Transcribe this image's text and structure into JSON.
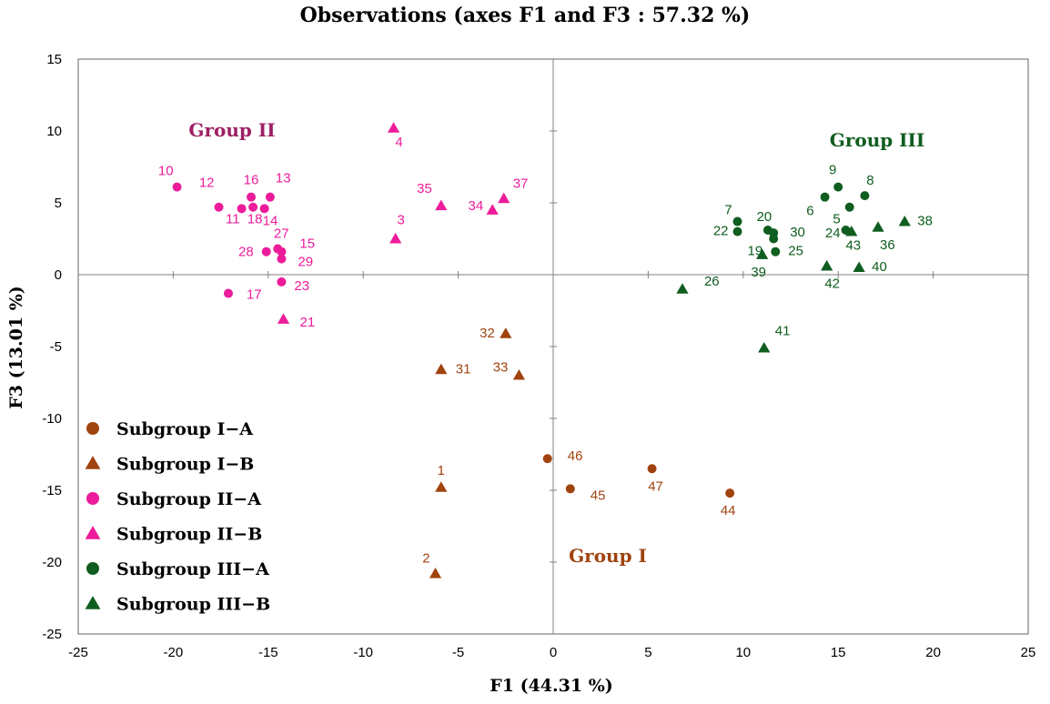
{
  "chart_data": {
    "type": "scatter",
    "title": "Observations (axes F1 and F3 : 57.32 %)",
    "xlabel": "F1 (44.31 %)",
    "ylabel": "F3 (13.01 %)",
    "xlim": [
      -25,
      25
    ],
    "ylim": [
      -25,
      15
    ],
    "xticks": [
      "-25",
      "-20",
      "-15",
      "-10",
      "-5",
      "0",
      "5",
      "10",
      "15",
      "20",
      "25"
    ],
    "yticks": [
      "15",
      "10",
      "5",
      "0",
      "-5",
      "-10",
      "-15",
      "-20",
      "-25"
    ],
    "grid": false,
    "legend_position": "bottom-left",
    "colors": {
      "Subgroup I−A": "#A0430F",
      "Subgroup I−B": "#A0430F",
      "Subgroup II−A": "#EC1C9A",
      "Subgroup II−B": "#EC1C9A",
      "Subgroup III−A": "#0F5D1F",
      "Subgroup III−B": "#0F5D1F"
    },
    "series": [
      {
        "name": "Subgroup I−A",
        "marker": "circle",
        "points": [
          {
            "label": "46",
            "x": -0.3,
            "y": -12.8
          },
          {
            "label": "45",
            "x": 0.9,
            "y": -14.9
          },
          {
            "label": "47",
            "x": 5.2,
            "y": -13.5
          },
          {
            "label": "44",
            "x": 9.3,
            "y": -15.2
          }
        ]
      },
      {
        "name": "Subgroup I−B",
        "marker": "triangle",
        "points": [
          {
            "label": "32",
            "x": -2.5,
            "y": -4.1
          },
          {
            "label": "31",
            "x": -5.9,
            "y": -6.6
          },
          {
            "label": "33",
            "x": -1.8,
            "y": -7.0
          },
          {
            "label": "1",
            "x": -5.9,
            "y": -14.8
          },
          {
            "label": "2",
            "x": -6.2,
            "y": -20.8
          }
        ]
      },
      {
        "name": "Subgroup II−A",
        "marker": "circle",
        "points": [
          {
            "label": "10",
            "x": -19.8,
            "y": 6.1
          },
          {
            "label": "12",
            "x": -17.6,
            "y": 4.7
          },
          {
            "label": "16",
            "x": -15.9,
            "y": 5.4
          },
          {
            "label": "13",
            "x": -14.9,
            "y": 5.4
          },
          {
            "label": "11",
            "x": -16.4,
            "y": 4.6
          },
          {
            "label": "18",
            "x": -15.8,
            "y": 4.7
          },
          {
            "label": "14",
            "x": -15.2,
            "y": 4.6
          },
          {
            "label": "27",
            "x": -14.5,
            "y": 1.8
          },
          {
            "label": "28",
            "x": -15.1,
            "y": 1.6
          },
          {
            "label": "15",
            "x": -14.3,
            "y": 1.6
          },
          {
            "label": "29",
            "x": -14.3,
            "y": 1.1
          },
          {
            "label": "23",
            "x": -14.3,
            "y": -0.5
          },
          {
            "label": "17",
            "x": -17.1,
            "y": -1.3
          }
        ]
      },
      {
        "name": "Subgroup II−B",
        "marker": "triangle",
        "points": [
          {
            "label": "4",
            "x": -8.4,
            "y": 10.2
          },
          {
            "label": "35",
            "x": -5.9,
            "y": 4.8
          },
          {
            "label": "34",
            "x": -3.2,
            "y": 4.5
          },
          {
            "label": "37",
            "x": -2.6,
            "y": 5.3
          },
          {
            "label": "3",
            "x": -8.3,
            "y": 2.5
          },
          {
            "label": "21",
            "x": -14.2,
            "y": -3.1
          }
        ]
      },
      {
        "name": "Subgroup III−A",
        "marker": "circle",
        "points": [
          {
            "label": "9",
            "x": 15.0,
            "y": 6.1
          },
          {
            "label": "8",
            "x": 16.4,
            "y": 5.5
          },
          {
            "label": "6",
            "x": 14.3,
            "y": 5.4
          },
          {
            "label": "5",
            "x": 15.6,
            "y": 4.7
          },
          {
            "label": "7",
            "x": 9.7,
            "y": 3.7
          },
          {
            "label": "20",
            "x": 11.3,
            "y": 3.1
          },
          {
            "label": "22",
            "x": 9.7,
            "y": 3.0
          },
          {
            "label": "30",
            "x": 11.6,
            "y": 2.9
          },
          {
            "label": "19",
            "x": 11.6,
            "y": 2.5
          },
          {
            "label": "25",
            "x": 11.7,
            "y": 1.6
          },
          {
            "label": "24",
            "x": 15.4,
            "y": 3.1
          }
        ]
      },
      {
        "name": "Subgroup III−B",
        "marker": "triangle",
        "points": [
          {
            "label": "38",
            "x": 18.5,
            "y": 3.7
          },
          {
            "label": "36",
            "x": 17.1,
            "y": 3.3
          },
          {
            "label": "43",
            "x": 15.7,
            "y": 3.0
          },
          {
            "label": "39",
            "x": 11.0,
            "y": 1.4
          },
          {
            "label": "42",
            "x": 14.4,
            "y": 0.6
          },
          {
            "label": "40",
            "x": 16.1,
            "y": 0.5
          },
          {
            "label": "26",
            "x": 6.8,
            "y": -1.0
          },
          {
            "label": "41",
            "x": 11.1,
            "y": -5.1
          }
        ]
      }
    ],
    "annotations": [
      {
        "text": "Group II",
        "color": "#9E1F63"
      },
      {
        "text": "Group III",
        "color": "#0F5D1F"
      },
      {
        "text": "Group I",
        "color": "#A0430F"
      }
    ]
  }
}
